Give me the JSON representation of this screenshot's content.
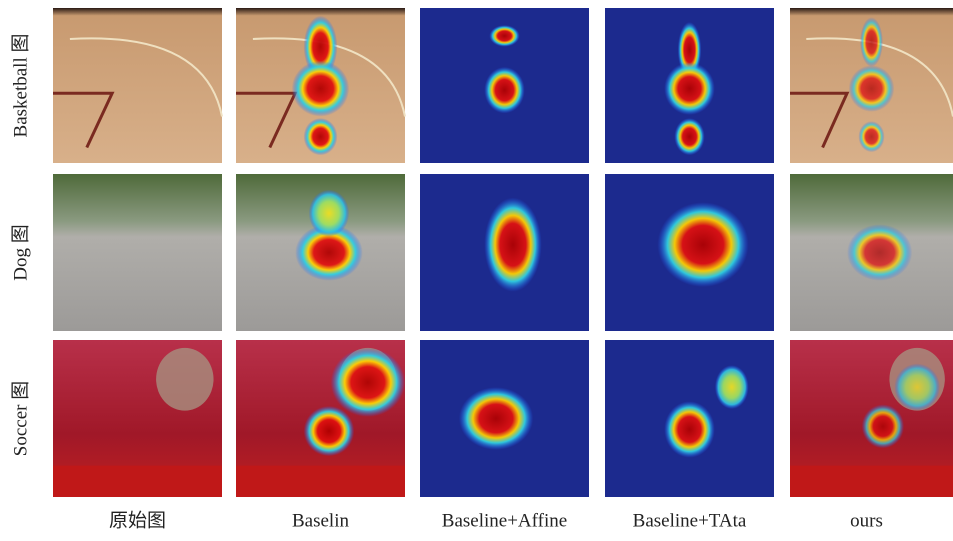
{
  "rows": [
    "Basketball 图",
    "Dog 图",
    "Soccer 图"
  ],
  "columns": [
    "原始图",
    "Baselin",
    "Baseline+Affine",
    "Baseline+TAta",
    "ours"
  ]
}
